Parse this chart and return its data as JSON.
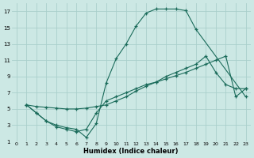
{
  "xlabel": "Humidex (Indice chaleur)",
  "bg_color": "#cce8e4",
  "grid_color": "#aacfcb",
  "line_color": "#1a6b5a",
  "xlim": [
    -0.5,
    23.5
  ],
  "ylim": [
    1,
    18
  ],
  "xticks": [
    0,
    1,
    2,
    3,
    4,
    5,
    6,
    7,
    8,
    9,
    10,
    11,
    12,
    13,
    14,
    15,
    16,
    17,
    18,
    19,
    20,
    21,
    22,
    23
  ],
  "yticks": [
    1,
    3,
    5,
    7,
    9,
    11,
    13,
    15,
    17
  ],
  "line1_x": [
    1,
    2,
    3,
    4,
    5,
    6,
    7,
    8,
    9,
    10,
    11,
    12,
    13,
    14,
    15,
    16,
    17,
    18,
    23
  ],
  "line1_y": [
    5.5,
    4.5,
    3.5,
    3.0,
    2.7,
    2.5,
    1.5,
    3.2,
    8.2,
    11.2,
    13.0,
    15.2,
    16.8,
    17.3,
    17.3,
    17.3,
    17.1,
    14.8,
    6.5
  ],
  "line2_x": [
    1,
    2,
    3,
    4,
    5,
    6,
    7,
    8,
    9,
    10,
    11,
    12,
    13,
    14,
    15,
    16,
    17,
    18,
    19,
    20,
    21,
    22,
    23
  ],
  "line2_y": [
    5.5,
    5.3,
    5.2,
    5.1,
    5.0,
    5.0,
    5.1,
    5.3,
    5.5,
    6.0,
    6.5,
    7.2,
    7.8,
    8.3,
    9.0,
    9.5,
    10.0,
    10.5,
    11.5,
    9.5,
    8.0,
    7.5,
    7.5
  ],
  "line3_x": [
    1,
    2,
    3,
    4,
    5,
    6,
    7,
    8,
    9,
    10,
    11,
    12,
    13,
    14,
    15,
    16,
    17,
    18,
    19,
    20,
    21,
    22,
    23
  ],
  "line3_y": [
    5.5,
    4.5,
    3.5,
    2.8,
    2.5,
    2.2,
    2.5,
    4.5,
    6.0,
    6.5,
    7.0,
    7.5,
    8.0,
    8.3,
    8.7,
    9.1,
    9.5,
    10.0,
    10.5,
    11.0,
    11.5,
    6.5,
    7.5
  ]
}
